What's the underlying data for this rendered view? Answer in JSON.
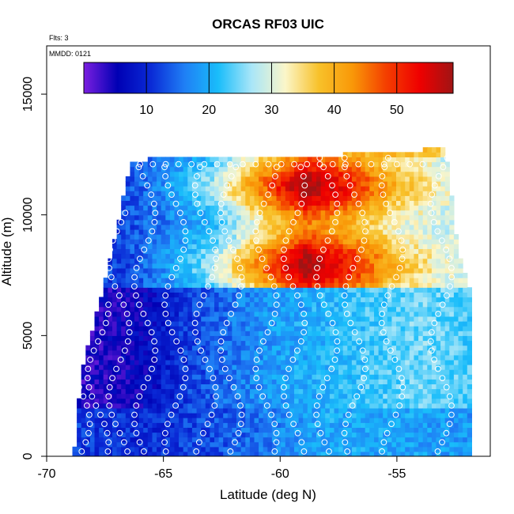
{
  "chart_data": {
    "type": "heatmap",
    "title": "ORCAS RF03 UIC",
    "annotations": [
      "Flts: 3",
      "MMDD: 0121"
    ],
    "xlabel": "Latitude (deg N)",
    "ylabel": "Altitude (m)",
    "xlim": [
      -70,
      -51
    ],
    "ylim": [
      0,
      17000
    ],
    "x_ticks": [
      "-70",
      "-65",
      "-60",
      "-55"
    ],
    "y_ticks": [
      "0",
      "5000",
      "10000",
      "15000"
    ],
    "colorbar": {
      "range": [
        0,
        59
      ],
      "ticks": [
        "10",
        "20",
        "30",
        "40",
        "50"
      ],
      "colors": [
        "#7b1fe0",
        "#0000b4",
        "#0a2ad6",
        "#1f7ff5",
        "#19bdfa",
        "#a9e6f8",
        "#fbf6c9",
        "#f8c12a",
        "#f99808",
        "#f43f00",
        "#ef0000",
        "#a01414"
      ]
    },
    "value_field": "UIC (colored by value)",
    "coverage": {
      "lat_start": -68.9,
      "lat_end": -51.9,
      "top_alt_by_lat": [
        [
          -68.9,
          400
        ],
        [
          -68.6,
          3500
        ],
        [
          -67.5,
          7500
        ],
        [
          -66.5,
          12000
        ],
        [
          -65.5,
          12300
        ],
        [
          -60,
          12300
        ],
        [
          -55,
          12500
        ],
        [
          -53,
          12700
        ],
        [
          -52.5,
          8500
        ],
        [
          -51.9,
          6500
        ]
      ]
    },
    "layers": [
      {
        "alt_range": [
          0,
          2000
        ],
        "values_by_lat": [
          [
            -69,
            12
          ],
          [
            -66,
            10
          ],
          [
            -62,
            14
          ],
          [
            -58,
            20
          ],
          [
            -54,
            19
          ],
          [
            -52,
            18
          ]
        ]
      },
      {
        "alt_range": [
          2000,
          7000
        ],
        "values_by_lat": [
          [
            -68,
            4
          ],
          [
            -66,
            6
          ],
          [
            -64,
            12
          ],
          [
            -62,
            16
          ],
          [
            -60,
            19
          ],
          [
            -57,
            22
          ],
          [
            -54,
            25
          ],
          [
            -52,
            23
          ]
        ]
      },
      {
        "alt_range": [
          7000,
          12300
        ],
        "values_by_lat": [
          [
            -67,
            12
          ],
          [
            -65,
            17
          ],
          [
            -63,
            24
          ],
          [
            -61,
            38
          ],
          [
            -59,
            52
          ],
          [
            -57,
            45
          ],
          [
            -55,
            35
          ],
          [
            -53,
            30
          ]
        ]
      },
      {
        "alt_range": [
          12300,
          12800
        ],
        "values_by_lat": [
          [
            -60,
            35
          ],
          [
            -56,
            40
          ],
          [
            -53,
            36
          ]
        ]
      }
    ],
    "flight_track_points": "white open circles along profiles",
    "grid": false,
    "legend": "colorbar top inside plot"
  }
}
